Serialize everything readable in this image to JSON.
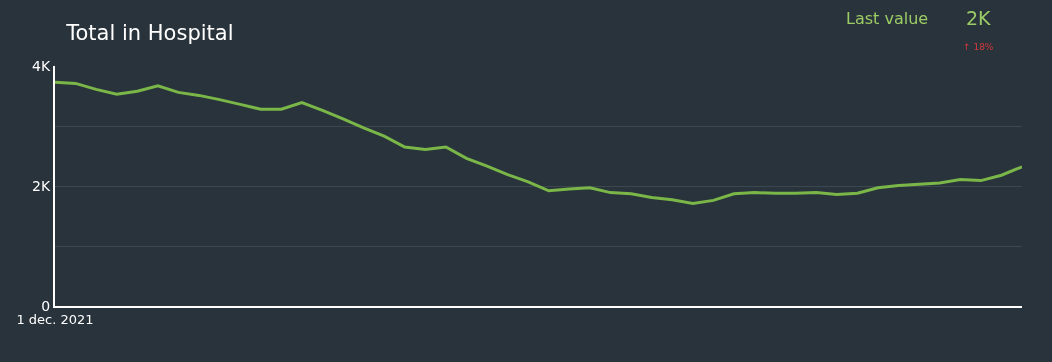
{
  "chart_data": {
    "type": "line",
    "title": "Total in Hospital",
    "annotations": [
      "Last value",
      "2K",
      "↑ 18%"
    ],
    "categories": [
      "1 dec. 2021",
      null,
      null,
      null,
      null,
      null,
      null,
      null,
      null,
      null,
      null,
      null,
      null,
      null,
      null,
      null,
      null,
      null,
      null,
      null,
      null,
      null,
      null,
      null,
      null,
      null,
      null,
      null,
      null,
      null,
      null,
      null,
      null,
      null,
      null,
      null,
      null,
      null,
      null,
      null,
      null,
      null,
      null,
      null,
      null,
      null,
      null,
      null
    ],
    "series": [
      {
        "color": "#7ab648",
        "values": [
          3730,
          3710,
          3610,
          3530,
          3580,
          3670,
          3560,
          3510,
          3440,
          3360,
          3280,
          3280,
          3390,
          3260,
          3120,
          2970,
          2830,
          2650,
          2610,
          2650,
          2460,
          2330,
          2190,
          2070,
          1920,
          1950,
          1970,
          1890,
          1870,
          1810,
          1770,
          1710,
          1760,
          1870,
          1890,
          1880,
          1880,
          1890,
          1860,
          1880,
          1970,
          2010,
          2030,
          2050,
          2110,
          2090,
          2180,
          2320
        ]
      }
    ],
    "ylim": [
      0,
      4000
    ],
    "yticks": [
      {
        "value": 0,
        "label": "0"
      },
      {
        "value": 1000,
        "label": null
      },
      {
        "value": 2000,
        "label": "2K"
      },
      {
        "value": 3000,
        "label": null
      },
      {
        "value": 4000,
        "label": "4K"
      }
    ],
    "grid": "y",
    "marker": "none",
    "line_style": "solid"
  }
}
